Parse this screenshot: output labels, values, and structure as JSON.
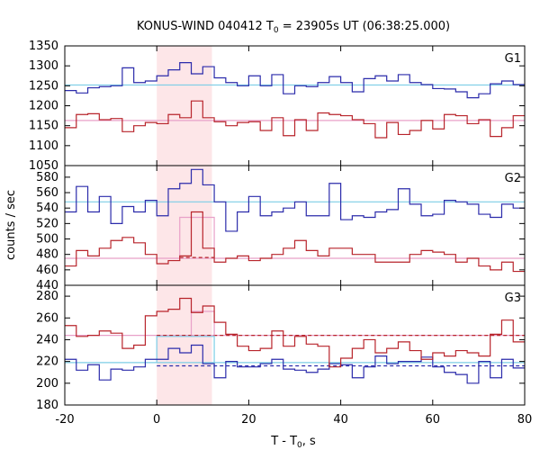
{
  "chart_data": {
    "type": "line",
    "title_main": "KONUS-WIND 040412 T",
    "title_sub": "0",
    "title_rest": " = 23905s UT (06:38:25.000)",
    "xlabel_main": "T - T",
    "xlabel_sub": "0",
    "xlabel_rest": ", s",
    "ylabel": "counts / sec",
    "xlim": [
      -20,
      80
    ],
    "xticks": [
      "-20",
      "0",
      "20",
      "40",
      "60",
      "80"
    ],
    "xtick_values": [
      -20,
      0,
      20,
      40,
      60,
      80
    ],
    "highlight": [
      0,
      12
    ],
    "bin_edges": [
      -20,
      -17.5,
      -15,
      -12.5,
      -10,
      -7.5,
      -5,
      -2.5,
      0,
      2.5,
      5,
      7.5,
      10,
      12.5,
      15,
      17.5,
      20,
      22.5,
      25,
      27.5,
      30,
      32.5,
      35,
      37.5,
      40,
      42.5,
      45,
      47.5,
      50,
      52.5,
      55,
      57.5,
      60,
      62.5,
      65,
      67.5,
      70,
      72.5,
      75,
      77.5,
      80
    ],
    "panels": [
      {
        "label": "G1",
        "ylim": [
          1050,
          1350
        ],
        "yticks": [
          "1050",
          "1100",
          "1150",
          "1200",
          "1250",
          "1300",
          "1350"
        ],
        "ytick_values": [
          1050,
          1100,
          1150,
          1200,
          1250,
          1300,
          1350
        ],
        "series": [
          {
            "color": "#2b2bab",
            "values": [
              1238,
              1232,
              1245,
              1248,
              1250,
              1295,
              1258,
              1262,
              1275,
              1290,
              1308,
              1280,
              1298,
              1270,
              1258,
              1250,
              1275,
              1250,
              1278,
              1230,
              1250,
              1248,
              1258,
              1273,
              1258,
              1235,
              1268,
              1275,
              1262,
              1278,
              1258,
              1253,
              1243,
              1242,
              1235,
              1220,
              1230,
              1255,
              1262,
              1253
            ]
          },
          {
            "color": "#b8242b",
            "values": [
              1145,
              1178,
              1180,
              1165,
              1168,
              1135,
              1150,
              1158,
              1155,
              1178,
              1170,
              1212,
              1170,
              1160,
              1150,
              1158,
              1160,
              1138,
              1170,
              1125,
              1165,
              1138,
              1182,
              1178,
              1175,
              1165,
              1155,
              1120,
              1158,
              1128,
              1138,
              1163,
              1142,
              1178,
              1175,
              1155,
              1165,
              1123,
              1145,
              1175
            ]
          }
        ],
        "backgrounds": [
          {
            "color": "#7ccde6",
            "value": 1252,
            "style": "solid"
          },
          {
            "color": "#e8a0c8",
            "value": 1163,
            "style": "solid"
          }
        ]
      },
      {
        "label": "G2",
        "ylim": [
          440,
          595
        ],
        "yticks": [
          "440",
          "460",
          "480",
          "500",
          "520",
          "540",
          "560",
          "580"
        ],
        "ytick_values": [
          440,
          460,
          480,
          500,
          520,
          540,
          560,
          580
        ],
        "series": [
          {
            "color": "#2b2bab",
            "values": [
              535,
              568,
              535,
              555,
              520,
              542,
              535,
              550,
              530,
              565,
              572,
              590,
              570,
              548,
              510,
              535,
              555,
              530,
              535,
              540,
              548,
              530,
              530,
              572,
              525,
              530,
              528,
              535,
              538,
              565,
              545,
              530,
              532,
              550,
              548,
              545,
              532,
              528,
              545,
              540
            ]
          },
          {
            "color": "#b8242b",
            "values": [
              465,
              485,
              478,
              488,
              498,
              502,
              495,
              480,
              468,
              472,
              478,
              535,
              488,
              470,
              475,
              478,
              472,
              475,
              480,
              488,
              498,
              485,
              478,
              488,
              488,
              480,
              480,
              470,
              470,
              470,
              480,
              485,
              483,
              480,
              470,
              475,
              465,
              460,
              470,
              458
            ]
          }
        ],
        "backgrounds": [
          {
            "color": "#7ccde6",
            "value": 548,
            "style": "solid"
          },
          {
            "color": "#e8a0c8",
            "value": 475,
            "style": "solid"
          },
          {
            "color": "#b8242b",
            "value": 476,
            "from": 5,
            "to": 12.5,
            "style": "dashed"
          },
          {
            "color": "#e8a0c8",
            "value": 528,
            "from": 5,
            "to": 12.5,
            "style": "box"
          }
        ]
      },
      {
        "label": "G3",
        "ylim": [
          180,
          290
        ],
        "yticks": [
          "180",
          "200",
          "220",
          "240",
          "260",
          "280"
        ],
        "ytick_values": [
          180,
          200,
          220,
          240,
          260,
          280
        ],
        "series": [
          {
            "color": "#2b2bab",
            "values": [
              222,
              212,
              217,
              203,
              213,
              212,
              215,
              222,
              222,
              232,
              228,
              235,
              218,
              205,
              220,
              215,
              215,
              218,
              222,
              213,
              212,
              210,
              213,
              218,
              217,
              205,
              215,
              225,
              218,
              220,
              220,
              224,
              215,
              210,
              208,
              200,
              220,
              205,
              222,
              214
            ]
          },
          {
            "color": "#b8242b",
            "values": [
              253,
              243,
              244,
              248,
              246,
              232,
              235,
              262,
              266,
              268,
              278,
              265,
              271,
              256,
              245,
              234,
              230,
              232,
              248,
              234,
              243,
              236,
              234,
              215,
              223,
              232,
              240,
              228,
              232,
              238,
              230,
              222,
              228,
              225,
              230,
              228,
              225,
              245,
              258,
              238
            ]
          }
        ],
        "backgrounds": [
          {
            "color": "#7ccde6",
            "value": 219,
            "style": "solid"
          },
          {
            "color": "#e8a0c8",
            "value": 244,
            "style": "solid"
          },
          {
            "color": "#2b2bab",
            "value": 216,
            "from": 0,
            "to": 80,
            "style": "dashed"
          },
          {
            "color": "#b8242b",
            "value": 244,
            "from": 0,
            "to": 80,
            "style": "dashed"
          },
          {
            "color": "#e8a0c8",
            "value": 266,
            "from": 7.5,
            "to": 12.5,
            "style": "box"
          },
          {
            "color": "#7ccde6",
            "value": 243,
            "from": 0,
            "to": 12.5,
            "style": "box"
          }
        ]
      }
    ]
  }
}
